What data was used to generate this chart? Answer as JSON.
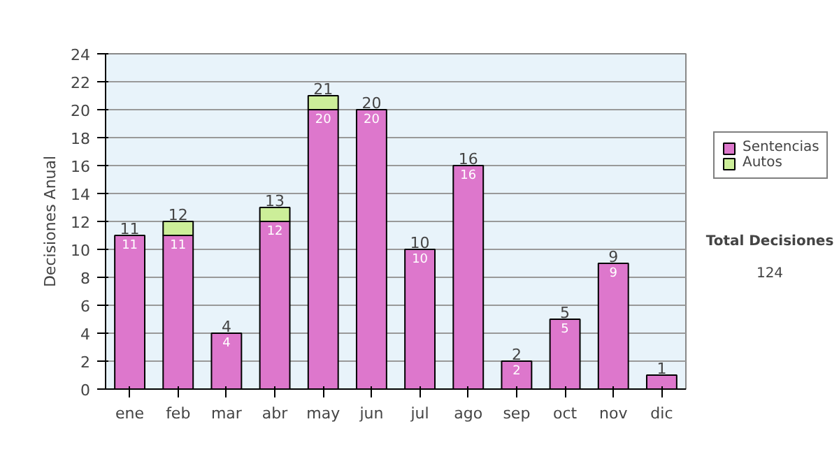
{
  "chart_data": {
    "type": "bar",
    "stacked": true,
    "ylabel": "Decisiones Anual",
    "categories": [
      "ene",
      "feb",
      "mar",
      "abr",
      "may",
      "jun",
      "jul",
      "ago",
      "sep",
      "oct",
      "nov",
      "dic"
    ],
    "series": [
      {
        "name": "Sentencias",
        "color": "#dd77cc",
        "values": [
          11,
          11,
          4,
          12,
          20,
          20,
          10,
          16,
          2,
          5,
          9,
          1
        ],
        "value_labels": [
          "11",
          "11",
          "4",
          "12",
          "20",
          "20",
          "10",
          "16",
          "2",
          "5",
          "9",
          null
        ]
      },
      {
        "name": "Autos",
        "color": "#ccee99",
        "values": [
          null,
          1,
          null,
          1,
          1,
          null,
          null,
          null,
          null,
          null,
          null,
          null
        ]
      }
    ],
    "totals": [
      "11",
      "12",
      "4",
      "13",
      "21",
      "20",
      "10",
      "16",
      "2",
      "5",
      "9",
      "1"
    ],
    "ylim": [
      0,
      24
    ],
    "yticks": [
      0,
      2,
      4,
      6,
      8,
      10,
      12,
      14,
      16,
      18,
      20,
      22,
      24
    ],
    "grid": "y",
    "legend": "right",
    "annotations": [
      "Total Decisiones",
      "124"
    ]
  }
}
